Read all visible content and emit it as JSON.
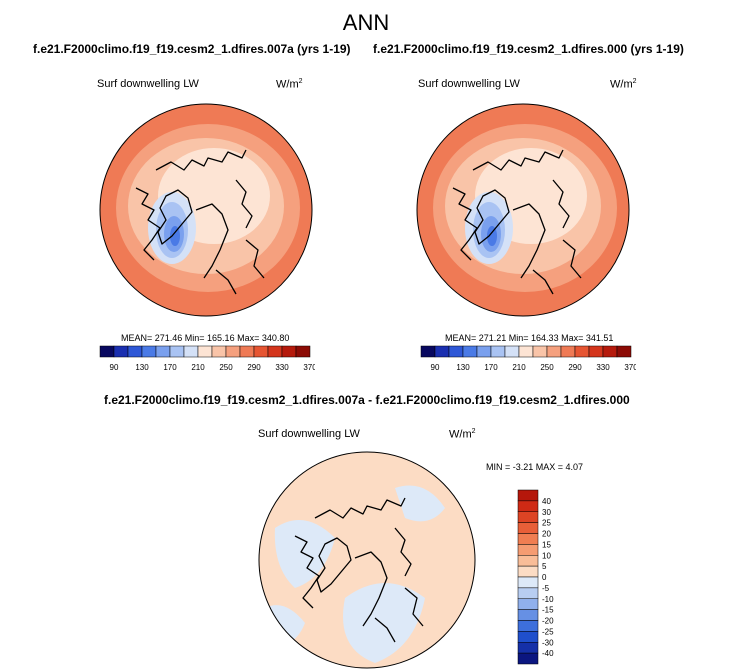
{
  "main_title": "ANN",
  "panels": [
    {
      "case_title": "f.e21.F2000climo.f19_f19.cesm2_1.dfires.007a (yrs 1-19)",
      "variable": "Surf downwelling LW",
      "units_base": "W/m",
      "units_exp": "2",
      "stats": "MEAN= 271.46  Min= 165.16  Max= 340.80"
    },
    {
      "case_title": "f.e21.F2000climo.f19_f19.cesm2_1.dfires.000 (yrs 1-19)",
      "variable": "Surf downwelling LW",
      "units_base": "W/m",
      "units_exp": "2",
      "stats": "MEAN= 271.21  Min= 164.33  Max= 341.51"
    },
    {
      "case_title": "f.e21.F2000climo.f19_f19.cesm2_1.dfires.007a - f.e21.F2000climo.f19_f19.cesm2_1.dfires.000",
      "variable": "Surf downwelling LW",
      "units_base": "W/m",
      "units_exp": "2",
      "stats": "MIN =  -3.21 MAX =   4.07"
    }
  ],
  "chart_data": [
    {
      "type": "heatmap",
      "projection": "north polar stereographic",
      "title": "Surf downwelling LW",
      "units": "W/m2",
      "stats": {
        "mean": 271.46,
        "min": 165.16,
        "max": 340.8
      },
      "colorbar": {
        "orientation": "horizontal",
        "tick_labels": [
          "90",
          "130",
          "170",
          "210",
          "250",
          "290",
          "330",
          "370"
        ],
        "colors": [
          "#08085f",
          "#1a2fb0",
          "#2e57d6",
          "#4a7ae6",
          "#7aa0ee",
          "#a9c3f3",
          "#d4e1f7",
          "#fde4d4",
          "#f9c4a8",
          "#f5a07e",
          "#ef7a55",
          "#e65532",
          "#d4351c",
          "#b51a0c",
          "#8c0b05"
        ]
      }
    },
    {
      "type": "heatmap",
      "projection": "north polar stereographic",
      "title": "Surf downwelling LW",
      "units": "W/m2",
      "stats": {
        "mean": 271.21,
        "min": 164.33,
        "max": 341.51
      },
      "colorbar": {
        "orientation": "horizontal",
        "tick_labels": [
          "90",
          "130",
          "170",
          "210",
          "250",
          "290",
          "330",
          "370"
        ],
        "colors": [
          "#08085f",
          "#1a2fb0",
          "#2e57d6",
          "#4a7ae6",
          "#7aa0ee",
          "#a9c3f3",
          "#d4e1f7",
          "#fde4d4",
          "#f9c4a8",
          "#f5a07e",
          "#ef7a55",
          "#e65532",
          "#d4351c",
          "#b51a0c",
          "#8c0b05"
        ]
      }
    },
    {
      "type": "heatmap",
      "projection": "north polar stereographic",
      "title": "Surf downwelling LW",
      "units": "W/m2",
      "stats": {
        "min": -3.21,
        "max": 4.07
      },
      "colorbar": {
        "orientation": "vertical",
        "tick_labels": [
          "40",
          "30",
          "25",
          "20",
          "15",
          "10",
          "5",
          "0",
          "-5",
          "-10",
          "-15",
          "-20",
          "-25",
          "-30",
          "-40"
        ],
        "colors": [
          "#b5170b",
          "#cf2a15",
          "#dd4424",
          "#e85f38",
          "#f07e52",
          "#f59c72",
          "#f9bd98",
          "#fcdcc4",
          "#dde9f8",
          "#b8cef2",
          "#90b0ec",
          "#6690e4",
          "#3d6fdc",
          "#1f4fcc",
          "#1530a8",
          "#0b1680"
        ]
      }
    }
  ]
}
